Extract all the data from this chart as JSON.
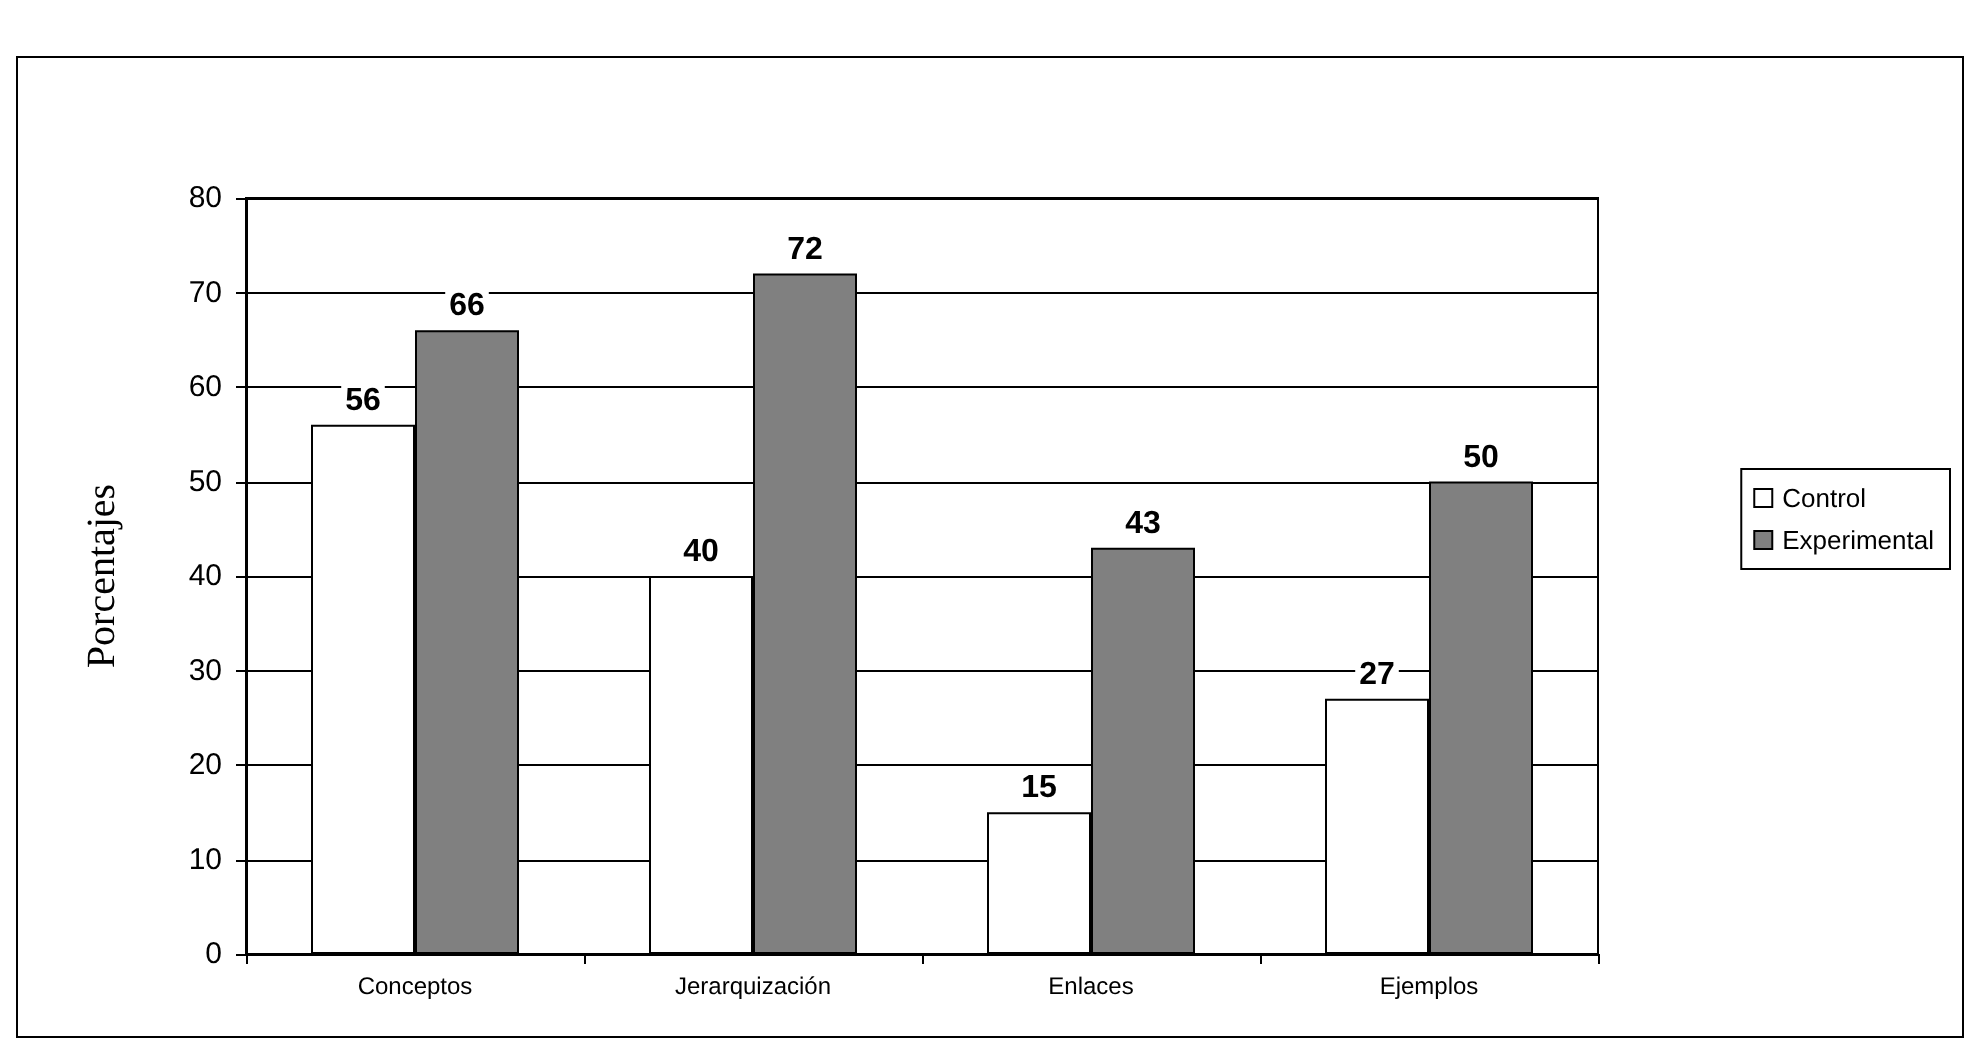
{
  "chart_data": {
    "type": "bar",
    "ylabel": "Porcentajes",
    "categories": [
      "Conceptos",
      "Jerarquización",
      "Enlaces",
      "Ejemplos"
    ],
    "series": [
      {
        "name": "Control",
        "color": "#ffffff",
        "values": [
          56,
          40,
          15,
          27
        ]
      },
      {
        "name": "Experimental",
        "color": "#808080",
        "values": [
          66,
          72,
          43,
          50
        ]
      }
    ],
    "ylim": [
      0,
      80
    ],
    "yticks": [
      0,
      10,
      20,
      30,
      40,
      50,
      60,
      70,
      80
    ],
    "grid": "y",
    "legend": "right",
    "data_labels": true
  }
}
